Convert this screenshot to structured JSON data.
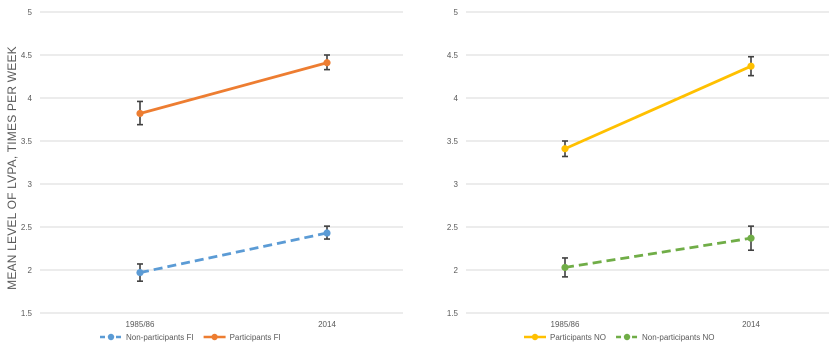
{
  "figure": {
    "ylabel": "MEAN LEVEL OF LVPA, TIMES PER WEEK"
  },
  "chart_data": [
    {
      "type": "line",
      "categories": [
        "1985/86",
        "2014"
      ],
      "ylim": [
        1.5,
        5
      ],
      "yticks": [
        "1.5",
        "2",
        "2.5",
        "3",
        "3.5",
        "4",
        "4.5",
        "5"
      ],
      "grid": true,
      "legend": "bottom",
      "series": [
        {
          "name": "Non-participants FI",
          "values": [
            1.97,
            2.43
          ],
          "err_low": [
            0.1,
            0.07
          ],
          "err_high": [
            0.1,
            0.08
          ],
          "color": "#5b9bd5",
          "dashed": true
        },
        {
          "name": "Participants FI",
          "values": [
            3.82,
            4.41
          ],
          "err_low": [
            0.13,
            0.08
          ],
          "err_high": [
            0.14,
            0.09
          ],
          "color": "#ed7d31",
          "dashed": false
        }
      ]
    },
    {
      "type": "line",
      "categories": [
        "1985/86",
        "2014"
      ],
      "ylim": [
        1.5,
        5
      ],
      "yticks": [
        "1.5",
        "2",
        "2.5",
        "3",
        "3.5",
        "4",
        "4.5",
        "5"
      ],
      "grid": true,
      "legend": "bottom",
      "series": [
        {
          "name": "Participants NO",
          "values": [
            3.41,
            4.37
          ],
          "err_low": [
            0.09,
            0.11
          ],
          "err_high": [
            0.09,
            0.11
          ],
          "color": "#ffc000",
          "dashed": false
        },
        {
          "name": "Non-participants NO",
          "values": [
            2.03,
            2.37
          ],
          "err_low": [
            0.11,
            0.14
          ],
          "err_high": [
            0.11,
            0.14
          ],
          "color": "#70ad47",
          "dashed": true
        }
      ]
    }
  ]
}
